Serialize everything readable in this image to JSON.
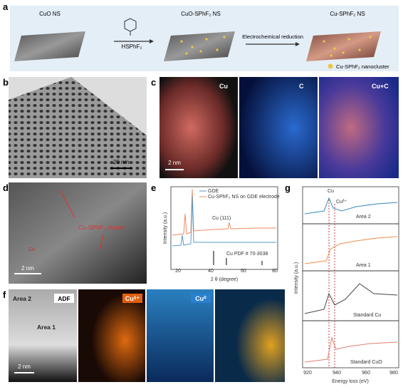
{
  "panel_labels": [
    "a",
    "b",
    "c",
    "d",
    "e",
    "f",
    "g"
  ],
  "a": {
    "steps": [
      "CuO NS",
      "CuO-SPhF₂ NS",
      "Cu-SPhF₂ NS"
    ],
    "reagent": "HSPhF₂",
    "arrow": "Electrochemical reduction",
    "legend": "Cu-SPhF₂ nanocluster"
  },
  "b": {
    "scale": "20 nm"
  },
  "c": {
    "maps": [
      "Cu",
      "C",
      "Cu+C"
    ],
    "scale": "2 nm"
  },
  "d": {
    "annotation": "Cu-SPhF₂ cluster",
    "label": "Cu",
    "scale": "2 nm"
  },
  "e": {
    "legend": [
      "GDE",
      "Cu-SPhF₂ NS on GDE electrode"
    ],
    "peak": "Cu (111)",
    "reference": "Cu PDF # 70-3038",
    "ylabel": "Intensity (a.u.)",
    "xlabel": "2 θ (degree)",
    "xticks": [
      20,
      40,
      60,
      80
    ]
  },
  "f": {
    "maps": [
      "ADF",
      "Cuᵟ⁺",
      "Cu⁰"
    ],
    "areas": [
      "Area 2",
      "Area 1"
    ],
    "scale": "2 nm"
  },
  "g": {
    "peaks": [
      "Cu",
      "Cuᵟ⁺"
    ],
    "traces": [
      "Area 2",
      "Area 1",
      "Standard Cu",
      "Standard CuO"
    ],
    "ylabel": "Intensity (a.u.)",
    "xlabel": "Energy loss (eV)",
    "xticks": [
      920,
      940,
      960,
      980
    ]
  }
}
